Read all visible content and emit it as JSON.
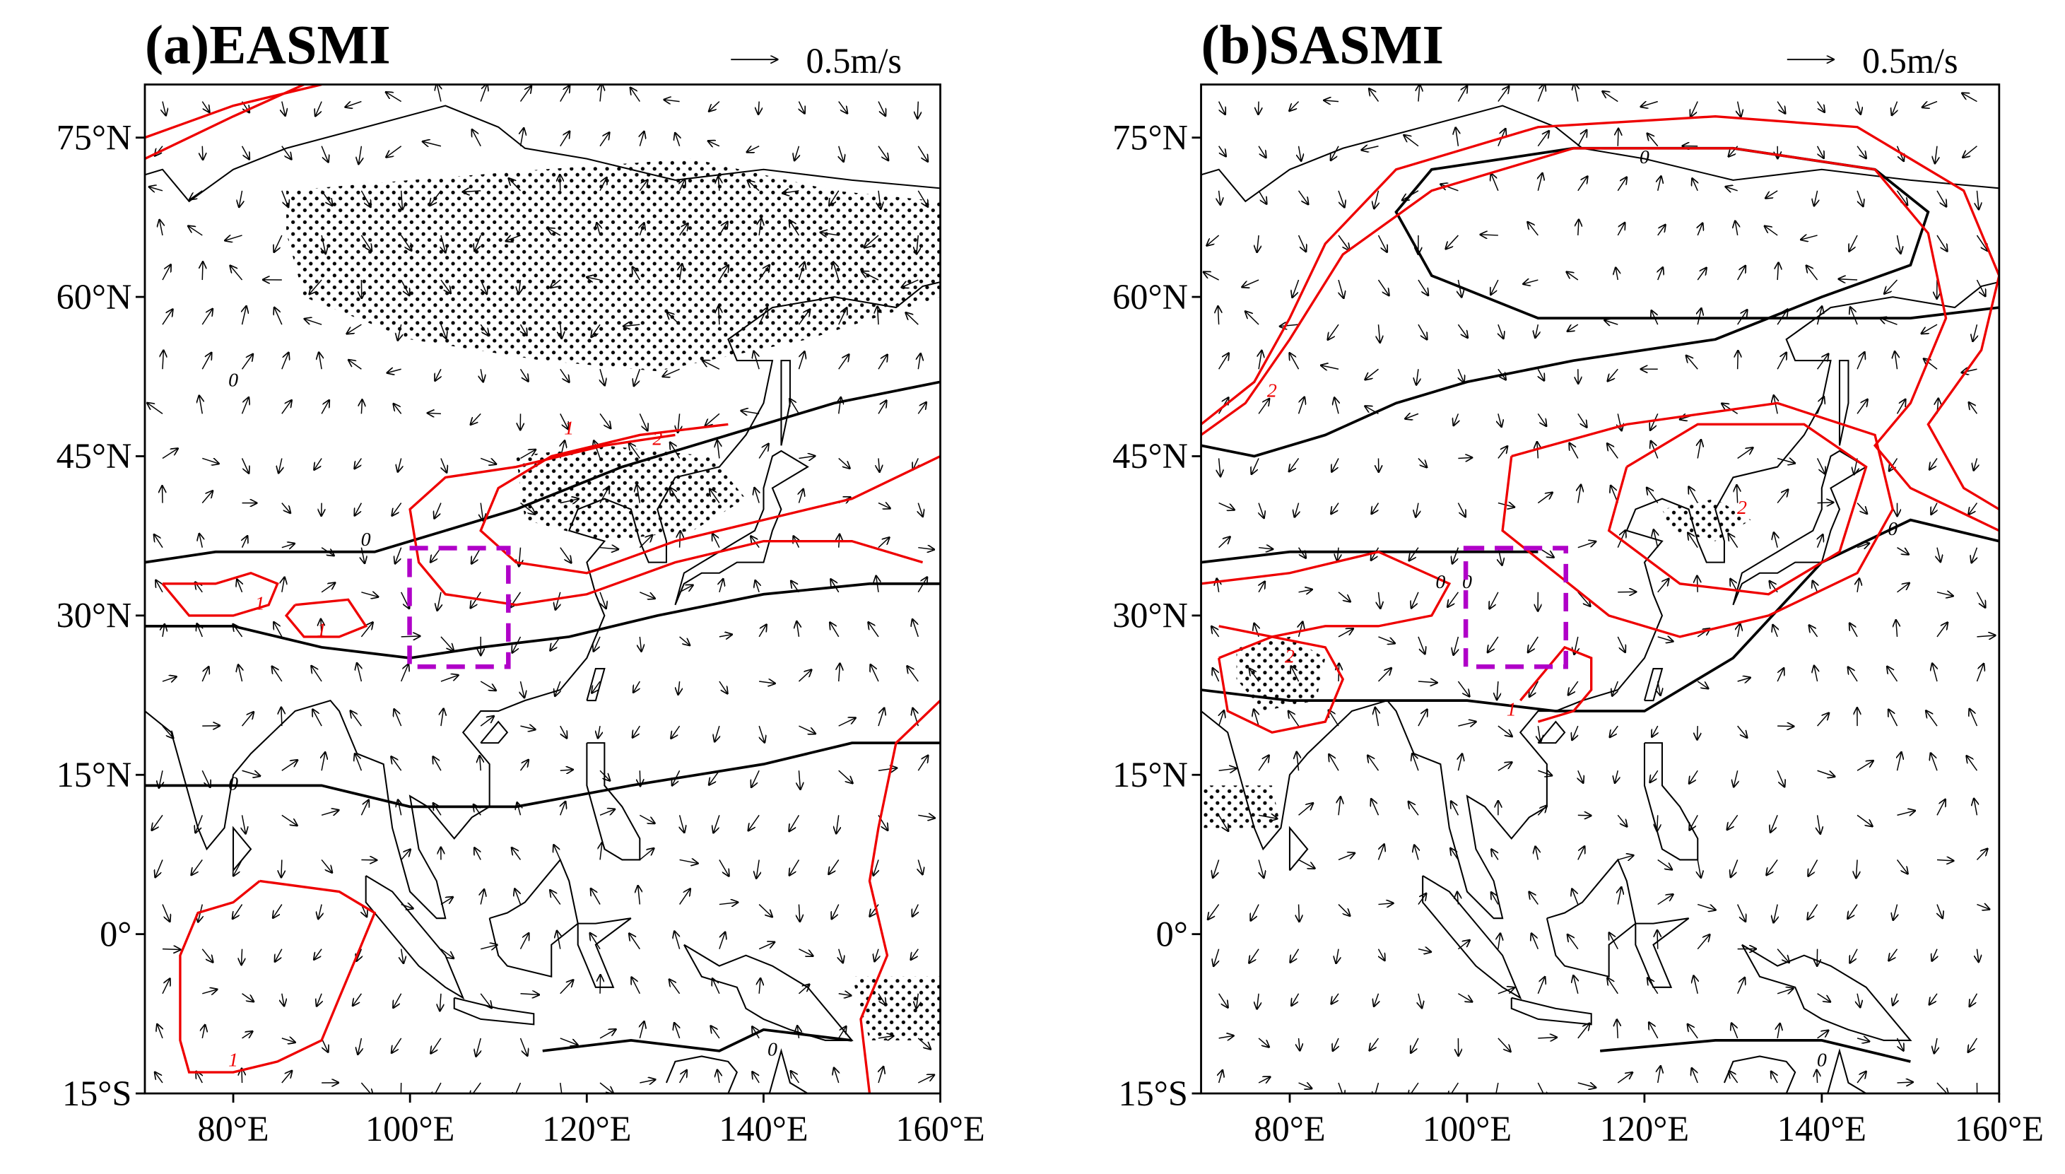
{
  "chart_data": [
    {
      "type": "map",
      "title": "(a)EASMI",
      "reference_vector": "0.5m/s",
      "xlim": [
        70,
        160
      ],
      "ylim": [
        -15,
        80
      ],
      "xticks": [
        {
          "value": 80,
          "label": "80°E"
        },
        {
          "value": 100,
          "label": "100°E"
        },
        {
          "value": 120,
          "label": "120°E"
        },
        {
          "value": 140,
          "label": "140°E"
        },
        {
          "value": 160,
          "label": "160°E"
        }
      ],
      "yticks": [
        {
          "value": -15,
          "label": "15°S"
        },
        {
          "value": 0,
          "label": "0°"
        },
        {
          "value": 15,
          "label": "15°N"
        },
        {
          "value": 30,
          "label": "30°N"
        },
        {
          "value": 45,
          "label": "45°N"
        },
        {
          "value": 60,
          "label": "60°N"
        },
        {
          "value": 75,
          "label": "75°N"
        }
      ],
      "contour_labels": [
        0,
        0,
        0,
        1,
        2,
        1,
        1,
        1,
        0
      ]
    },
    {
      "type": "map",
      "title": "(b)SASMI",
      "reference_vector": "0.5m/s",
      "xlim": [
        70,
        160
      ],
      "ylim": [
        -15,
        80
      ],
      "xticks": [
        {
          "value": 80,
          "label": "80°E"
        },
        {
          "value": 100,
          "label": "100°E"
        },
        {
          "value": 120,
          "label": "120°E"
        },
        {
          "value": 140,
          "label": "140°E"
        },
        {
          "value": 160,
          "label": "160°E"
        }
      ],
      "yticks": [
        {
          "value": -15,
          "label": "15°S"
        },
        {
          "value": 0,
          "label": "0°"
        },
        {
          "value": 15,
          "label": "15°N"
        },
        {
          "value": 30,
          "label": "30°N"
        },
        {
          "value": 45,
          "label": "45°N"
        },
        {
          "value": 60,
          "label": "60°N"
        },
        {
          "value": 75,
          "label": "75°N"
        }
      ],
      "contour_labels": [
        0,
        0,
        0,
        0,
        2,
        2,
        2,
        1,
        0
      ]
    }
  ]
}
